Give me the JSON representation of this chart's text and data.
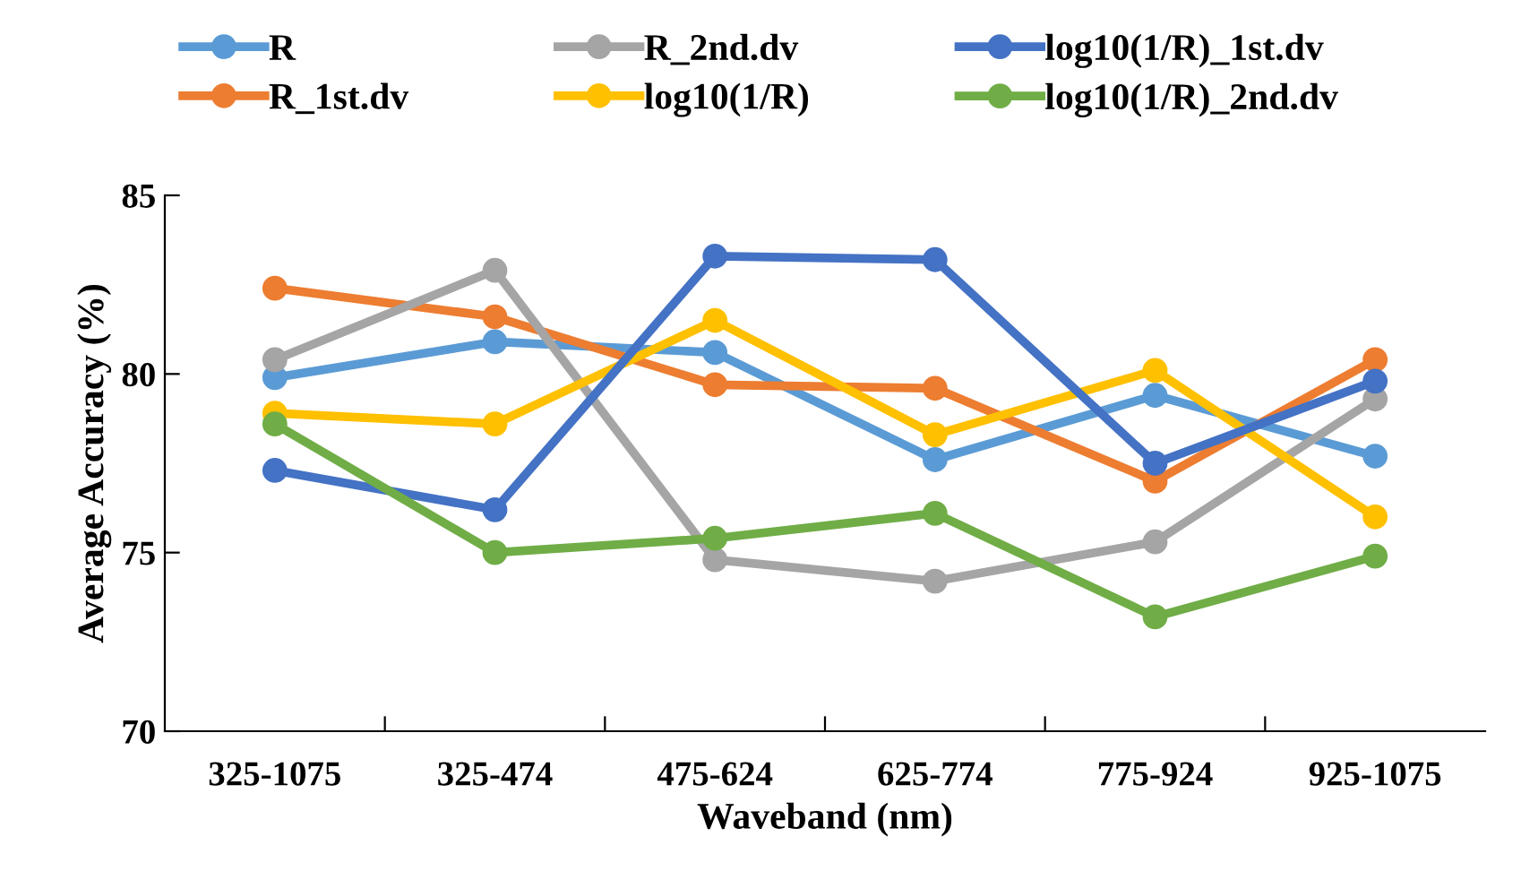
{
  "chart_data": {
    "type": "line",
    "xlabel": "Waveband (nm)",
    "ylabel": "Average Accuracy (%)",
    "categories": [
      "325-1075",
      "325-474",
      "475-624",
      "625-774",
      "775-924",
      "925-1075"
    ],
    "series": [
      {
        "name": "R",
        "color": "#5b9bd5",
        "values": [
          79.9,
          80.9,
          80.6,
          77.6,
          79.4,
          77.7
        ]
      },
      {
        "name": "R_1st.dv",
        "color": "#ed7d31",
        "values": [
          82.4,
          81.6,
          79.7,
          79.6,
          77.0,
          80.4
        ]
      },
      {
        "name": "R_2nd.dv",
        "color": "#a5a5a5",
        "values": [
          80.4,
          82.9,
          74.8,
          74.2,
          75.3,
          79.3
        ]
      },
      {
        "name": "log10(1/R)",
        "color": "#ffc000",
        "values": [
          78.9,
          78.6,
          81.5,
          78.3,
          80.1,
          76.0
        ]
      },
      {
        "name": "log10(1/R)_1st.dv",
        "color": "#4472c4",
        "values": [
          77.3,
          76.2,
          83.3,
          83.2,
          77.5,
          79.8
        ]
      },
      {
        "name": "log10(1/R)_2nd.dv",
        "color": "#70ad47",
        "values": [
          78.6,
          75.0,
          75.4,
          76.1,
          73.2,
          74.9
        ]
      }
    ],
    "ylim": [
      70,
      85
    ],
    "yticks": [
      70,
      75,
      80,
      85
    ],
    "grid": false,
    "legend": "top",
    "marker": "circle",
    "line_style": "solid"
  }
}
